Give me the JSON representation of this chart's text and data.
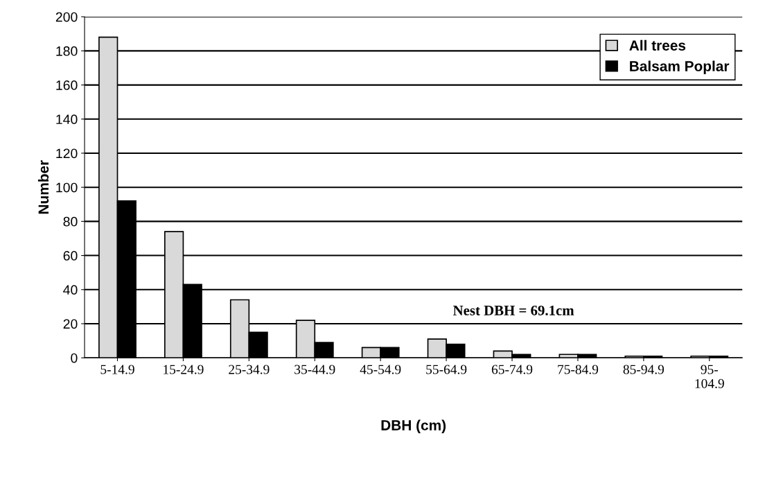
{
  "chart_data": {
    "type": "bar",
    "xlabel": "DBH (cm)",
    "ylabel": "Number",
    "categories": [
      "5-14.9",
      "15-24.9",
      "25-34.9",
      "35-44.9",
      "45-54.9",
      "55-64.9",
      "65-74.9",
      "75-84.9",
      "85-94.9",
      "95-\n104.9"
    ],
    "series": [
      {
        "name": "All trees",
        "color": "#d9d9d9",
        "values": [
          188,
          74,
          34,
          22,
          6,
          11,
          4,
          2,
          1,
          1
        ]
      },
      {
        "name": "Balsam Poplar",
        "color": "#000000",
        "values": [
          92,
          43,
          15,
          9,
          6,
          8,
          2,
          2,
          1,
          1
        ]
      }
    ],
    "ylim": [
      0,
      200
    ],
    "yticks": [
      0,
      20,
      40,
      60,
      80,
      100,
      120,
      140,
      160,
      180,
      200
    ],
    "grid": "y",
    "legend": "top right",
    "annotations": [
      "Nest DBH = 69.1cm"
    ]
  }
}
